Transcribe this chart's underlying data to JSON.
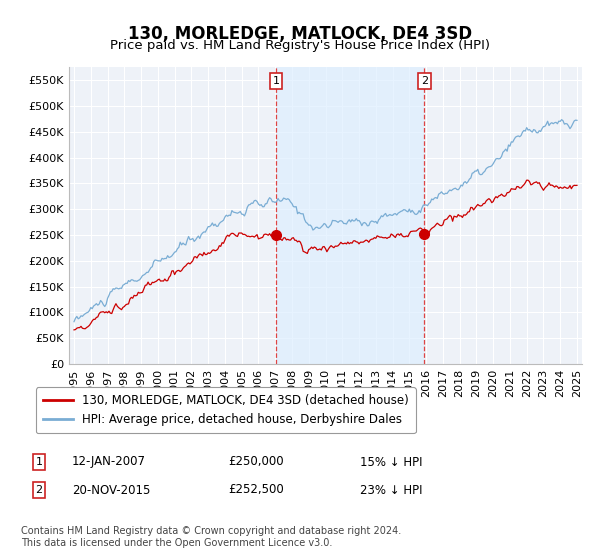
{
  "title": "130, MORLEDGE, MATLOCK, DE4 3SD",
  "subtitle": "Price paid vs. HM Land Registry's House Price Index (HPI)",
  "ylabel_ticks": [
    "£0",
    "£50K",
    "£100K",
    "£150K",
    "£200K",
    "£250K",
    "£300K",
    "£350K",
    "£400K",
    "£450K",
    "£500K",
    "£550K"
  ],
  "ytick_values": [
    0,
    50000,
    100000,
    150000,
    200000,
    250000,
    300000,
    350000,
    400000,
    450000,
    500000,
    550000
  ],
  "ylim": [
    0,
    575000
  ],
  "xlim_start": 1994.7,
  "xlim_end": 2025.3,
  "xticks": [
    1995,
    1996,
    1997,
    1998,
    1999,
    2000,
    2001,
    2002,
    2003,
    2004,
    2005,
    2006,
    2007,
    2008,
    2009,
    2010,
    2011,
    2012,
    2013,
    2014,
    2015,
    2016,
    2017,
    2018,
    2019,
    2020,
    2021,
    2022,
    2023,
    2024,
    2025
  ],
  "sale1_x": 2007.04,
  "sale1_y": 250000,
  "sale1_label": "1",
  "sale1_date": "12-JAN-2007",
  "sale1_price": "£250,000",
  "sale1_hpi": "15% ↓ HPI",
  "sale2_x": 2015.9,
  "sale2_y": 252500,
  "sale2_label": "2",
  "sale2_date": "20-NOV-2015",
  "sale2_price": "£252,500",
  "sale2_hpi": "23% ↓ HPI",
  "red_line_color": "#cc0000",
  "blue_line_color": "#7aadd4",
  "vline_color": "#dd4444",
  "shade_color": "#ddeeff",
  "background_color": "#eef2f8",
  "grid_color": "#ffffff",
  "legend_label_red": "130, MORLEDGE, MATLOCK, DE4 3SD (detached house)",
  "legend_label_blue": "HPI: Average price, detached house, Derbyshire Dales",
  "footnote": "Contains HM Land Registry data © Crown copyright and database right 2024.\nThis data is licensed under the Open Government Licence v3.0.",
  "title_fontsize": 12,
  "subtitle_fontsize": 9.5,
  "tick_fontsize": 8,
  "legend_fontsize": 8.5,
  "footnote_fontsize": 7
}
